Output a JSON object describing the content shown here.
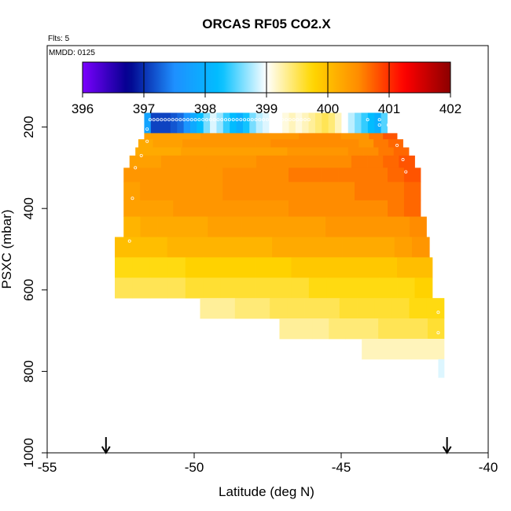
{
  "chart_data": {
    "type": "heatmap",
    "title": "ORCAS RF05 CO2.X",
    "notes": {
      "flights": "Flts: 5",
      "date": "MMDD: 0125"
    },
    "xlabel": "Latitude (deg N)",
    "ylabel": "PSXC (mbar)",
    "xlim": [
      -55,
      -40
    ],
    "ylim": [
      1000,
      0
    ],
    "x_ticks": [
      -55,
      -50,
      -45,
      -40
    ],
    "x_tick_labels": [
      "-55",
      "-50",
      "-45",
      "-40"
    ],
    "y_ticks": [
      200,
      400,
      600,
      800,
      1000
    ],
    "y_tick_labels": [
      "200",
      "400",
      "600",
      "800",
      "1000"
    ],
    "colorbar": {
      "range": [
        396,
        402
      ],
      "ticks": [
        396,
        397,
        398,
        399,
        400,
        401,
        402
      ],
      "tick_labels": [
        "396",
        "397",
        "398",
        "399",
        "400",
        "401",
        "402"
      ],
      "colors": [
        "#7b00ff",
        "#00008b",
        "#1e90ff",
        "#00bfff",
        "#ffffff",
        "#ffd700",
        "#ff8c00",
        "#ff0000",
        "#8b0000"
      ]
    },
    "arrow_latitudes": [
      -53.0,
      -41.4
    ],
    "rows": [
      {
        "p": [
          165,
          215
        ],
        "x": [
          -51.7,
          -43.2
        ],
        "v": [
          397.8,
          397.1,
          397.1,
          397.1,
          397.2,
          397.3,
          397.6,
          397.9,
          398.2,
          398.6,
          398.9,
          398.7,
          398.4,
          398.2,
          398.0,
          398.3,
          398.6,
          398.8,
          398.9,
          399.0,
          399.0,
          399.1,
          399.2,
          399.1,
          399.2,
          399.3,
          399.4,
          399.5,
          399.4,
          399.2,
          399.0,
          398.8,
          398.6,
          398.4,
          398.2,
          398.0,
          398.5,
          399.0
        ]
      },
      {
        "p": [
          215,
          230
        ],
        "x": [
          -51.7,
          -43.1
        ],
        "v": [
          400.3,
          400.3,
          400.3,
          400.3,
          400.4,
          400.4,
          400.4,
          400.4,
          400.4,
          400.4,
          400.4,
          400.5,
          400.5,
          400.5,
          400.4,
          400.4,
          400.6,
          400.8
        ]
      },
      {
        "p": [
          230,
          250
        ],
        "x": [
          -51.9,
          -42.9
        ],
        "v": [
          400.2,
          400.3,
          400.3,
          400.4,
          400.4,
          400.4,
          400.4,
          400.4,
          400.4,
          400.5,
          400.5,
          400.5,
          400.5,
          400.5,
          400.5,
          400.4,
          400.6,
          400.7
        ]
      },
      {
        "p": [
          250,
          270
        ],
        "x": [
          -52.0,
          -42.7
        ],
        "v": [
          400.2,
          400.2,
          400.2,
          400.3,
          400.3,
          400.3,
          400.3,
          400.3,
          400.3,
          400.3,
          400.4,
          400.4,
          400.4,
          400.4,
          400.5,
          400.5,
          400.6,
          400.7
        ]
      },
      {
        "p": [
          270,
          300
        ],
        "x": [
          -52.2,
          -42.5
        ],
        "v": [
          400.3,
          400.3,
          400.4,
          400.4,
          400.4,
          400.4,
          400.4,
          400.4,
          400.5,
          400.5,
          400.5,
          400.5,
          400.5,
          400.5,
          400.6,
          400.6,
          400.7,
          400.8
        ]
      },
      {
        "p": [
          300,
          335
        ],
        "x": [
          -52.4,
          -42.3
        ],
        "v": [
          400.4,
          400.4,
          400.4,
          400.4,
          400.4,
          400.4,
          400.5,
          400.5,
          400.5,
          400.5,
          400.6,
          400.6,
          400.6,
          400.6,
          400.6,
          400.6,
          400.7,
          400.8
        ]
      },
      {
        "p": [
          335,
          380
        ],
        "x": [
          -52.4,
          -42.3
        ],
        "v": [
          400.3,
          400.4,
          400.4,
          400.4,
          400.4,
          400.4,
          400.5,
          400.5,
          400.5,
          400.5,
          400.5,
          400.5,
          400.5,
          400.5,
          400.6,
          400.6,
          400.6,
          400.7
        ]
      },
      {
        "p": [
          380,
          420
        ],
        "x": [
          -52.4,
          -42.3
        ],
        "v": [
          400.3,
          400.3,
          400.3,
          400.4,
          400.4,
          400.4,
          400.4,
          400.4,
          400.4,
          400.4,
          400.5,
          400.5,
          400.5,
          400.5,
          400.5,
          400.5,
          400.6,
          400.7
        ]
      },
      {
        "p": [
          420,
          470
        ],
        "x": [
          -52.4,
          -42.1
        ],
        "v": [
          400.1,
          400.2,
          400.2,
          400.2,
          400.2,
          400.3,
          400.3,
          400.3,
          400.3,
          400.3,
          400.3,
          400.3,
          400.4,
          400.4,
          400.4,
          400.4,
          400.4,
          400.5
        ]
      },
      {
        "p": [
          470,
          520
        ],
        "x": [
          -52.7,
          -42.0
        ],
        "v": [
          400.0,
          400.0,
          400.0,
          400.1,
          400.1,
          400.1,
          400.1,
          400.1,
          400.1,
          400.2,
          400.2,
          400.2,
          400.2,
          400.2,
          400.2,
          400.2,
          400.3,
          400.4
        ]
      },
      {
        "p": [
          520,
          570
        ],
        "x": [
          -52.7,
          -41.9
        ],
        "v": [
          399.7,
          399.7,
          399.7,
          399.7,
          399.8,
          399.8,
          399.8,
          399.8,
          399.8,
          399.8,
          399.9,
          399.9,
          399.9,
          399.9,
          399.9,
          399.9,
          400.0,
          400.0
        ]
      },
      {
        "p": [
          570,
          620
        ],
        "x": [
          -52.7,
          -41.9
        ],
        "v": [
          399.5,
          399.5,
          399.5,
          399.5,
          399.6,
          399.6,
          399.6,
          399.6,
          399.6,
          399.6,
          399.6,
          399.7,
          399.7,
          399.7,
          399.7,
          399.7,
          399.7,
          399.8
        ]
      },
      {
        "p": [
          620,
          670
        ],
        "x": [
          -49.8,
          -41.5
        ],
        "v": [
          399.3,
          399.3,
          399.4,
          399.4,
          399.5,
          399.5,
          399.5,
          399.5,
          399.6,
          399.6,
          399.6,
          399.6,
          399.7,
          399.7
        ]
      },
      {
        "p": [
          670,
          720
        ],
        "x": [
          -47.1,
          -41.5
        ],
        "v": [
          399.3,
          399.3,
          399.3,
          399.4,
          399.4,
          399.4,
          399.5,
          399.5,
          399.5,
          399.6
        ]
      },
      {
        "p": [
          720,
          770
        ],
        "x": [
          -44.3,
          -41.5
        ],
        "v": [
          399.2,
          399.2,
          399.2,
          399.2,
          399.2
        ]
      },
      {
        "p": [
          770,
          815
        ],
        "x": [
          -41.7,
          -41.5
        ],
        "v": [
          398.9
        ]
      }
    ],
    "sample_points": [
      {
        "p": 182,
        "x": [
          -51.5,
          -46.1
        ],
        "n": 43
      },
      {
        "p": 182,
        "x": [
          -44.1,
          -43.3
        ],
        "n": 3
      },
      {
        "p": 195,
        "x": [
          -43.7,
          -43.4
        ],
        "n": 2
      },
      {
        "p": 205,
        "x": [
          -51.6,
          -51.6
        ],
        "n": 1
      },
      {
        "p": 235,
        "x": [
          -51.6,
          -51.6
        ],
        "n": 1
      },
      {
        "p": 245,
        "x": [
          -43.1,
          -43.1
        ],
        "n": 1
      },
      {
        "p": 270,
        "x": [
          -51.8,
          -51.8
        ],
        "n": 1
      },
      {
        "p": 280,
        "x": [
          -42.9,
          -42.9
        ],
        "n": 1
      },
      {
        "p": 300,
        "x": [
          -52.0,
          -52.0
        ],
        "n": 1
      },
      {
        "p": 310,
        "x": [
          -42.8,
          -42.8
        ],
        "n": 1
      },
      {
        "p": 375,
        "x": [
          -52.1,
          -52.1
        ],
        "n": 1
      },
      {
        "p": 480,
        "x": [
          -52.2,
          -52.2
        ],
        "n": 1
      },
      {
        "p": 655,
        "x": [
          -41.7,
          -41.7
        ],
        "n": 1
      },
      {
        "p": 705,
        "x": [
          -41.7,
          -41.7
        ],
        "n": 1
      }
    ]
  }
}
